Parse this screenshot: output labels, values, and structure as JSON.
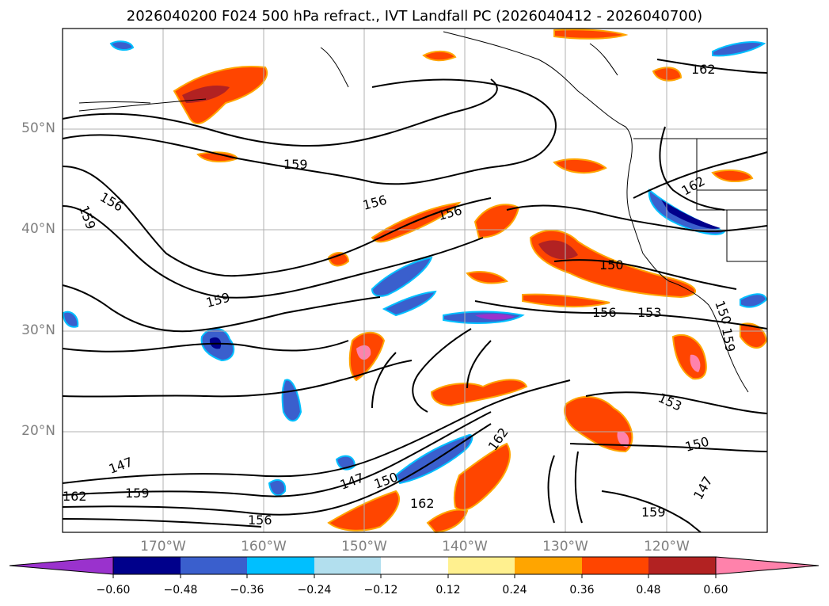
{
  "title": "2026040200 F024 500 hPa refract., IVT Landfall PC (2026040412 - 2026040700)",
  "latitude_labels": [
    "50°N",
    "40°N",
    "30°N",
    "20°N"
  ],
  "longitude_labels": [
    "170°W",
    "160°W",
    "150°W",
    "140°W",
    "130°W",
    "120°W"
  ],
  "contour_labels": [
    "162",
    "159",
    "156",
    "159",
    "156",
    "156",
    "159",
    "150",
    "156",
    "153",
    "150",
    "153",
    "150",
    "147",
    "162",
    "147",
    "150",
    "162",
    "159",
    "162",
    "156",
    "159",
    "162",
    "159",
    "147"
  ],
  "colorbar": {
    "ticks": [
      "−0.60",
      "−0.48",
      "−0.36",
      "−0.24",
      "−0.12",
      "0.12",
      "0.24",
      "0.36",
      "0.48",
      "0.60"
    ],
    "colors": [
      "#9a32cd",
      "#00008b",
      "#3a5fcd",
      "#00bfff",
      "#b2dfee",
      "#ffffff",
      "#fff08f",
      "#ffa500",
      "#ff4500",
      "#b22222",
      "#ff82ab"
    ]
  },
  "chart_data": {
    "type": "heatmap",
    "title": "2026040200 F024 500 hPa refract., IVT Landfall PC (2026040412 - 2026040700)",
    "xlabel": "",
    "ylabel": "",
    "x_ticks": [
      "170°W",
      "160°W",
      "150°W",
      "140°W",
      "130°W",
      "120°W"
    ],
    "y_ticks": [
      "50°N",
      "40°N",
      "30°N",
      "20°N"
    ],
    "xlim": [
      -180,
      -110
    ],
    "ylim": [
      10,
      60
    ],
    "contour_field": "500 hPa refractivity",
    "contour_levels": [
      147,
      150,
      153,
      156,
      159,
      162
    ],
    "shaded_field": "IVT Landfall PC",
    "color_levels": [
      -0.6,
      -0.48,
      -0.36,
      -0.24,
      -0.12,
      0.12,
      0.24,
      0.36,
      0.48,
      0.6
    ],
    "grid": true
  }
}
